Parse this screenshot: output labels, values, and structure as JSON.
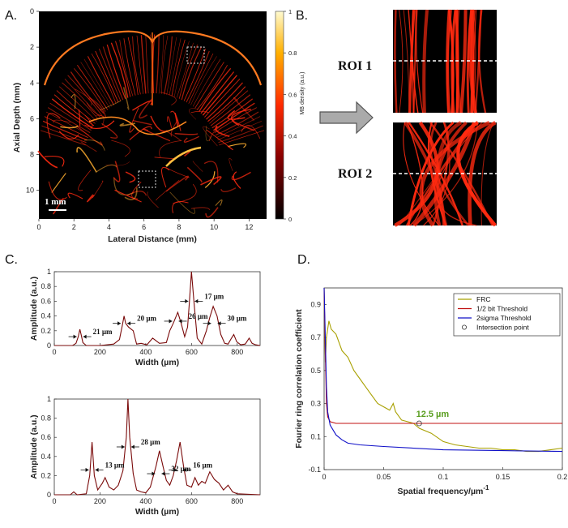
{
  "colors": {
    "vessel": "#ff2a10",
    "trace": "#7a0a0a",
    "frc": "#a8a000",
    "half_bit": "#c01010",
    "two_sigma": "#1010c8",
    "intersection_label": "#5a9e20",
    "arrow_fill": "#aaaaaa"
  },
  "panelA": {
    "label": "A.",
    "ylabel": "Axial Depth (mm)",
    "xlabel": "Lateral Distance (mm)",
    "scale_bar": "1 mm",
    "colorbar_label": "MB density (a.u.)",
    "colorbar_ticks": [
      "0",
      "0.2",
      "0.4",
      "0.6",
      "0.8",
      "1"
    ],
    "xticks": [
      "0",
      "2",
      "4",
      "6",
      "8",
      "10",
      "12"
    ],
    "yticks": [
      "0",
      "2",
      "4",
      "6",
      "8",
      "10"
    ]
  },
  "panelB": {
    "label": "B.",
    "roi1": "ROI 1",
    "roi2": "ROI 2",
    "arrow_icon": "right-arrow-icon"
  },
  "panelC": {
    "label": "C."
  },
  "panelD": {
    "label": "D."
  },
  "chart_data": [
    {
      "type": "line",
      "title": "",
      "xlabel": "Width (µm)",
      "ylabel": "Amplitude (a.u.)",
      "xlim": [
        0,
        900
      ],
      "ylim": [
        0,
        1
      ],
      "xticks": [
        0,
        200,
        400,
        600,
        800
      ],
      "yticks": [
        0,
        0.2,
        0.4,
        0.6,
        0.8,
        1
      ],
      "series": [
        {
          "x": [
            0,
            80,
            95,
            105,
            112,
            118,
            125,
            140,
            200,
            260,
            285,
            298,
            305,
            312,
            325,
            345,
            360,
            380,
            405,
            430,
            460,
            490,
            505,
            520,
            540,
            555,
            570,
            583,
            590,
            600,
            612,
            625,
            645,
            665,
            680,
            695,
            712,
            728,
            745,
            760,
            775,
            785,
            798,
            815,
            835,
            852,
            865,
            880,
            900
          ],
          "y": [
            0,
            0,
            0.03,
            0.12,
            0.22,
            0.14,
            0.04,
            0,
            0,
            0.02,
            0.08,
            0.28,
            0.4,
            0.3,
            0.25,
            0.2,
            0.02,
            0.03,
            0.01,
            0.1,
            0.03,
            0.04,
            0.2,
            0.3,
            0.45,
            0.3,
            0.12,
            0.25,
            0.55,
            1.0,
            0.55,
            0.1,
            0.02,
            0.2,
            0.38,
            0.53,
            0.4,
            0.15,
            0.03,
            0.02,
            0.1,
            0.15,
            0.05,
            0.01,
            0.02,
            0.1,
            0.03,
            0.01,
            0
          ]
        }
      ],
      "annotations": [
        {
          "text": "21 µm",
          "x": 112,
          "y": 0.12
        },
        {
          "text": "20 µm",
          "x": 305,
          "y": 0.3
        },
        {
          "text": "26 µm",
          "x": 530,
          "y": 0.33
        },
        {
          "text": "17 µm",
          "x": 600,
          "y": 0.6
        },
        {
          "text": "30 µm",
          "x": 700,
          "y": 0.3
        }
      ]
    },
    {
      "type": "line",
      "title": "",
      "xlabel": "Width (µm)",
      "ylabel": "Amplitude (a.u.)",
      "xlim": [
        0,
        900
      ],
      "ylim": [
        0,
        1
      ],
      "xticks": [
        0,
        200,
        400,
        600,
        800
      ],
      "yticks": [
        0,
        0.2,
        0.4,
        0.6,
        0.8,
        1
      ],
      "series": [
        {
          "x": [
            0,
            70,
            85,
            100,
            140,
            155,
            165,
            175,
            190,
            210,
            222,
            240,
            260,
            280,
            300,
            315,
            322,
            330,
            345,
            360,
            380,
            400,
            420,
            445,
            460,
            475,
            490,
            505,
            520,
            535,
            550,
            565,
            580,
            600,
            615,
            630,
            645,
            660,
            680,
            700,
            720,
            740,
            760,
            780,
            800,
            900
          ],
          "y": [
            0,
            0,
            0.03,
            0,
            0.01,
            0.2,
            0.55,
            0.2,
            0.05,
            0.12,
            0.18,
            0.08,
            0.05,
            0.1,
            0.25,
            0.6,
            1.0,
            0.6,
            0.22,
            0.05,
            0.03,
            0.02,
            0.08,
            0.3,
            0.46,
            0.3,
            0.15,
            0.1,
            0.2,
            0.36,
            0.55,
            0.3,
            0.1,
            0.08,
            0.18,
            0.1,
            0.14,
            0.12,
            0.24,
            0.16,
            0.12,
            0.05,
            0.1,
            0.03,
            0.01,
            0
          ]
        }
      ],
      "annotations": [
        {
          "text": "13 µm",
          "x": 165,
          "y": 0.26
        },
        {
          "text": "28 µm",
          "x": 322,
          "y": 0.5
        },
        {
          "text": "32 µm",
          "x": 455,
          "y": 0.22
        },
        {
          "text": "16 µm",
          "x": 550,
          "y": 0.26
        }
      ]
    },
    {
      "type": "line",
      "title": "",
      "xlabel": "Spatial frequency/µm",
      "xlabel_superscript": "-1",
      "ylabel": "Fourier ring correlation coefficient",
      "xlim": [
        0,
        0.2
      ],
      "ylim": [
        -0.1,
        1.0
      ],
      "xticks": [
        0,
        0.05,
        0.1,
        0.15,
        0.2
      ],
      "yticks": [
        -0.1,
        0.1,
        0.3,
        0.5,
        0.7,
        0.9
      ],
      "legend_position": "top-right",
      "legend_marker": "○",
      "series": [
        {
          "name": "FRC",
          "x": [
            0,
            0.001,
            0.002,
            0.004,
            0.006,
            0.01,
            0.015,
            0.02,
            0.025,
            0.03,
            0.035,
            0.04,
            0.045,
            0.05,
            0.055,
            0.058,
            0.06,
            0.065,
            0.07,
            0.075,
            0.08,
            0.09,
            0.1,
            0.11,
            0.12,
            0.13,
            0.14,
            0.15,
            0.16,
            0.17,
            0.18,
            0.19,
            0.2
          ],
          "y": [
            1.0,
            0.55,
            0.7,
            0.8,
            0.75,
            0.72,
            0.62,
            0.58,
            0.5,
            0.45,
            0.4,
            0.35,
            0.3,
            0.28,
            0.26,
            0.3,
            0.25,
            0.2,
            0.19,
            0.18,
            0.15,
            0.12,
            0.07,
            0.05,
            0.04,
            0.03,
            0.03,
            0.02,
            0.02,
            0.01,
            0.01,
            0.02,
            0.03
          ]
        },
        {
          "name": "1/2 bit Threshold",
          "x": [
            0,
            0.001,
            0.002,
            0.003,
            0.005,
            0.01,
            0.2
          ],
          "y": [
            1.0,
            0.6,
            0.3,
            0.22,
            0.19,
            0.18,
            0.18
          ]
        },
        {
          "name": "2sigma Threshold",
          "x": [
            0,
            0.001,
            0.002,
            0.003,
            0.005,
            0.01,
            0.015,
            0.02,
            0.03,
            0.05,
            0.1,
            0.15,
            0.2
          ],
          "y": [
            1.0,
            0.7,
            0.4,
            0.25,
            0.17,
            0.11,
            0.08,
            0.06,
            0.05,
            0.04,
            0.02,
            0.015,
            0.01
          ]
        },
        {
          "name": "Intersection point",
          "points": [
            [
              0.0798,
              0.18
            ]
          ]
        }
      ],
      "annotation": {
        "text": "12.5 µm",
        "x": 0.08,
        "y": 0.18
      }
    }
  ]
}
